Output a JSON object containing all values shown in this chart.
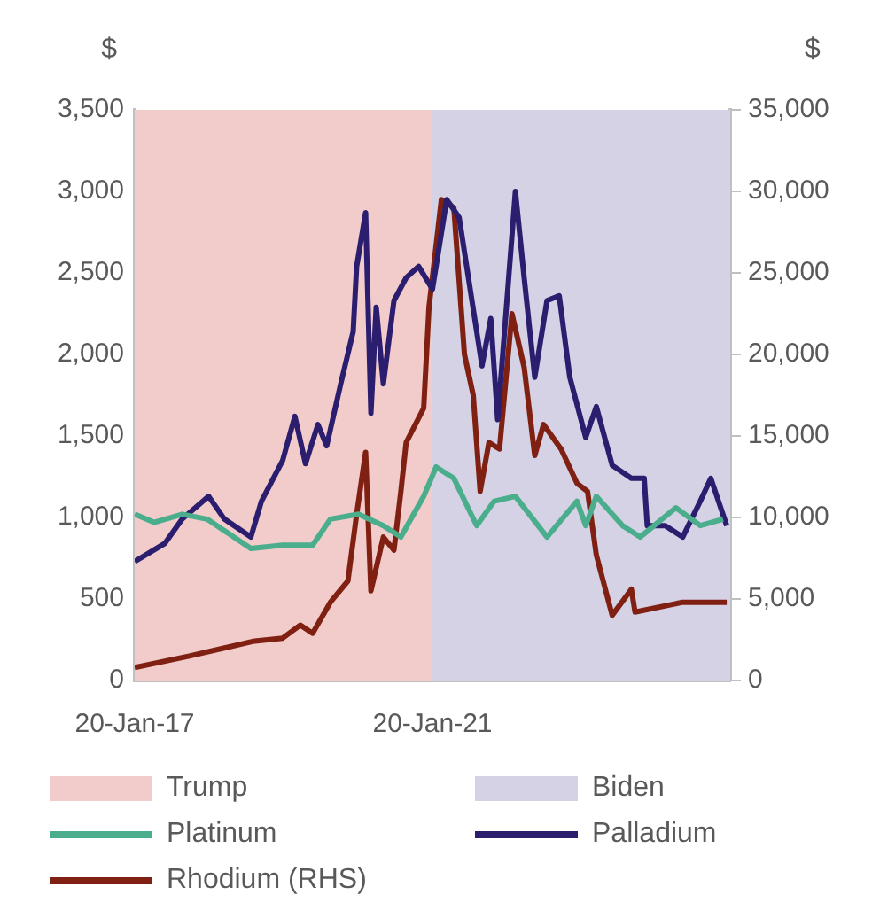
{
  "chart_data": {
    "type": "line",
    "ylabel": "$",
    "y2label": "$",
    "legend": "bottom",
    "xlim": [
      "2017-01-20",
      "2025-01-20"
    ],
    "xticks": [
      {
        "value": "2017-01-20",
        "label": "20-Jan-17"
      },
      {
        "value": "2021-01-20",
        "label": "20-Jan-21"
      }
    ],
    "ylim": [
      0,
      3500
    ],
    "yticks": [
      0,
      {
        "value": 500,
        "label": "500"
      },
      {
        "value": 1000,
        "label": "1,000"
      },
      {
        "value": 1500,
        "label": "1,500"
      },
      {
        "value": 2000,
        "label": "2,000"
      },
      {
        "value": 2500,
        "label": "2,500"
      },
      {
        "value": 3000,
        "label": "3,000"
      },
      {
        "value": 3500,
        "label": "3,500"
      }
    ],
    "y2lim": [
      0,
      35000
    ],
    "y2ticks": [
      0,
      {
        "value": 5000,
        "label": "5,000"
      },
      {
        "value": 10000,
        "label": "10,000"
      },
      {
        "value": 15000,
        "label": "15,000"
      },
      {
        "value": 20000,
        "label": "20,000"
      },
      {
        "value": 25000,
        "label": "25,000"
      },
      {
        "value": 30000,
        "label": "30,000"
      },
      {
        "value": 35000,
        "label": "35,000"
      }
    ],
    "bands": [
      {
        "axis": "x",
        "from": "2017-01-20",
        "to": "2021-01-20",
        "label": "Trump",
        "color": "#f2cbcb"
      },
      {
        "axis": "x",
        "from": "2021-01-20",
        "to": "2025-01-20",
        "label": "Biden",
        "color": "#d5d2e5"
      }
    ],
    "series": [
      {
        "name": "Platinum",
        "color": "#4aae8c",
        "x": [
          "2017-01-20",
          "2017-04-25",
          "2017-09-10",
          "2018-01-10",
          "2018-08-13",
          "2019-01-16",
          "2019-06-12",
          "2019-09-07",
          "2020-01-23",
          "2020-05-24",
          "2020-08-18",
          "2020-12-08",
          "2021-02-07",
          "2021-05-05",
          "2021-08-25",
          "2021-11-19",
          "2022-03-03",
          "2022-08-05",
          "2022-12-30",
          "2023-02-11",
          "2023-04-04",
          "2023-08-11",
          "2023-11-05",
          "2024-04-28",
          "2024-08-26",
          "2024-12-16"
        ],
        "values": [
          1020,
          970,
          1020,
          990,
          810,
          830,
          830,
          990,
          1020,
          950,
          880,
          1130,
          1310,
          1240,
          950,
          1100,
          1130,
          880,
          1100,
          950,
          1130,
          950,
          880,
          1060,
          950,
          990
        ]
      },
      {
        "name": "Palladium",
        "color": "#2b1e6f",
        "x": [
          "2017-01-20",
          "2017-06-16",
          "2017-09-10",
          "2018-01-18",
          "2018-04-05",
          "2018-08-13",
          "2018-10-04",
          "2019-01-16",
          "2019-03-17",
          "2019-05-08",
          "2019-07-08",
          "2019-08-20",
          "2019-10-28",
          "2019-12-28",
          "2020-01-14",
          "2020-02-27",
          "2020-03-24",
          "2020-04-19",
          "2020-05-24",
          "2020-07-15",
          "2020-09-13",
          "2020-11-13",
          "2021-01-20",
          "2021-03-31",
          "2021-05-31",
          "2021-09-20",
          "2021-11-02",
          "2021-12-06",
          "2022-03-03",
          "2022-04-15",
          "2022-06-06",
          "2022-08-05",
          "2022-10-04",
          "2022-11-25",
          "2023-02-11",
          "2023-04-04",
          "2023-06-21",
          "2023-09-23",
          "2023-11-25",
          "2023-12-10",
          "2024-03-07",
          "2024-06-01",
          "2024-08-26",
          "2024-10-17",
          "2025-01-03"
        ],
        "values": [
          730,
          840,
          990,
          1130,
          990,
          880,
          1100,
          1350,
          1620,
          1330,
          1570,
          1440,
          1820,
          2140,
          2540,
          2870,
          1640,
          2290,
          1820,
          2330,
          2470,
          2540,
          2400,
          2950,
          2840,
          1930,
          2220,
          1600,
          3000,
          2470,
          1860,
          2330,
          2360,
          1860,
          1490,
          1680,
          1320,
          1240,
          1240,
          950,
          950,
          880,
          1100,
          1240,
          950
        ]
      },
      {
        "name": "Rhodium (RHS)",
        "color": "#7f2012",
        "axis": "y2",
        "x": [
          "2017-01-20",
          "2017-10-15",
          "2018-08-22",
          "2019-01-16",
          "2019-04-13",
          "2019-06-12",
          "2019-09-07",
          "2019-12-02",
          "2020-01-14",
          "2020-02-27",
          "2020-03-24",
          "2020-05-24",
          "2020-07-15",
          "2020-08-18",
          "2020-09-13",
          "2020-12-08",
          "2021-01-03",
          "2021-03-05",
          "2021-05-05",
          "2021-06-26",
          "2021-08-08",
          "2021-09-11",
          "2021-10-24",
          "2021-12-15",
          "2022-02-14",
          "2022-04-15",
          "2022-06-06",
          "2022-07-19",
          "2022-10-13",
          "2022-12-30",
          "2023-02-20",
          "2023-04-04",
          "2023-06-21",
          "2023-09-23",
          "2023-10-11",
          "2024-06-01",
          "2025-01-03"
        ],
        "values": [
          800,
          1500,
          2400,
          2600,
          3400,
          2900,
          4800,
          6100,
          10200,
          14000,
          5500,
          8800,
          8000,
          11600,
          14600,
          16700,
          22900,
          29500,
          29000,
          20000,
          17500,
          11600,
          14600,
          14200,
          22500,
          19200,
          13800,
          15700,
          14200,
          12100,
          11600,
          7700,
          4000,
          5600,
          4200,
          4800,
          4800
        ]
      }
    ]
  }
}
